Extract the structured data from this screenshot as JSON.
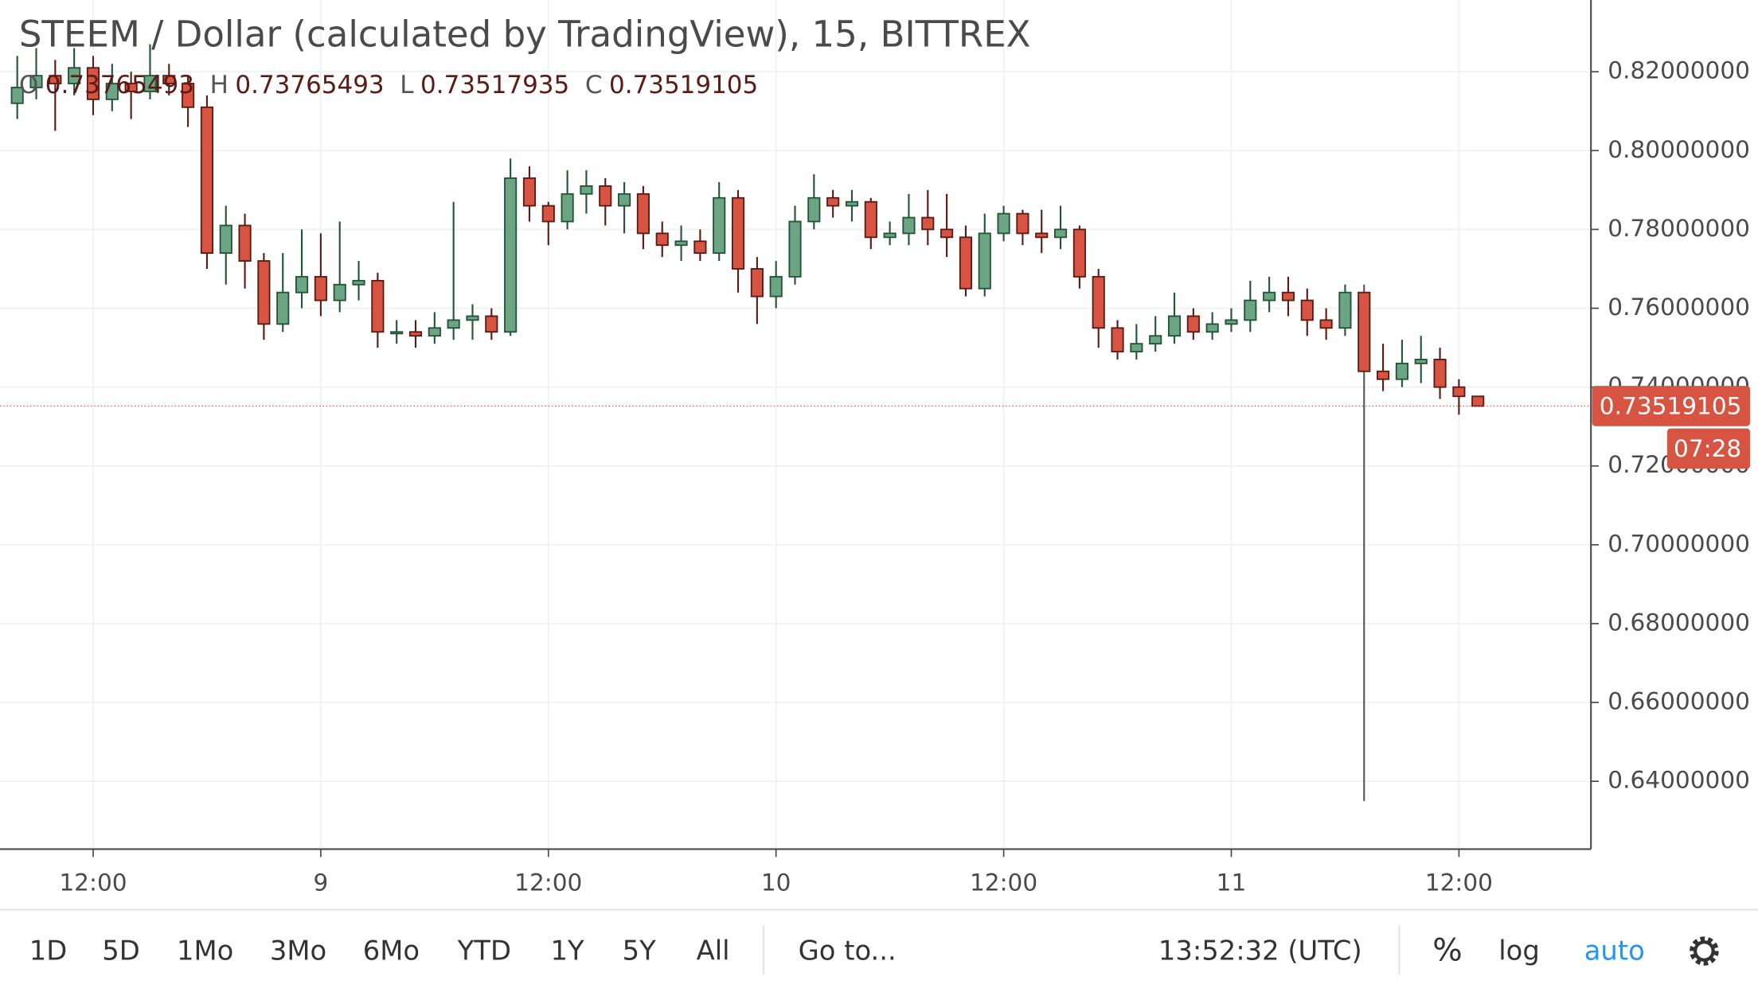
{
  "chart_data": {
    "type": "candlestick",
    "title": "STEEM / Dollar (calculated by TradingView), 15, BITTREX",
    "ohlc_labels": [
      "O",
      "H",
      "L",
      "C"
    ],
    "x": [
      8,
      9,
      10,
      11,
      12,
      13,
      14,
      15,
      16,
      17,
      18,
      19,
      20,
      21,
      22,
      23,
      24,
      25,
      26,
      27,
      28,
      29,
      30,
      31,
      32,
      33,
      34,
      35,
      36,
      37,
      38,
      39,
      40,
      41,
      42,
      43,
      44,
      45,
      46,
      47,
      48,
      49,
      50,
      51,
      52,
      53,
      54,
      55,
      56,
      57,
      58,
      59,
      60,
      61,
      62,
      63,
      64,
      65,
      66,
      67,
      68,
      69,
      70,
      71,
      72,
      73,
      74,
      75,
      76,
      77,
      78,
      79,
      80,
      81,
      82,
      83,
      84,
      85
    ],
    "open": [
      0.812,
      0.816,
      0.819,
      0.817,
      0.821,
      0.813,
      0.817,
      0.815,
      0.819,
      0.817,
      0.811,
      0.774,
      0.781,
      0.772,
      0.756,
      0.764,
      0.768,
      0.762,
      0.766,
      0.767,
      0.754,
      0.754,
      0.753,
      0.755,
      0.757,
      0.758,
      0.754,
      0.793,
      0.786,
      0.782,
      0.789,
      0.791,
      0.786,
      0.789,
      0.779,
      0.776,
      0.777,
      0.774,
      0.788,
      0.77,
      0.763,
      0.768,
      0.782,
      0.788,
      0.786,
      0.787,
      0.778,
      0.779,
      0.783,
      0.78,
      0.778,
      0.765,
      0.779,
      0.784,
      0.779,
      0.778,
      0.78,
      0.768,
      0.755,
      0.749,
      0.751,
      0.753,
      0.758,
      0.754,
      0.756,
      0.757,
      0.762,
      0.764,
      0.762,
      0.757,
      0.755,
      0.764,
      0.744,
      0.742,
      0.746,
      0.747,
      0.74,
      0.73765493
    ],
    "high": [
      0.824,
      0.826,
      0.823,
      0.826,
      0.824,
      0.822,
      0.82,
      0.827,
      0.822,
      0.819,
      0.814,
      0.786,
      0.784,
      0.774,
      0.774,
      0.78,
      0.779,
      0.782,
      0.772,
      0.769,
      0.757,
      0.757,
      0.759,
      0.787,
      0.761,
      0.76,
      0.798,
      0.796,
      0.787,
      0.795,
      0.795,
      0.793,
      0.792,
      0.791,
      0.782,
      0.781,
      0.78,
      0.792,
      0.79,
      0.773,
      0.772,
      0.786,
      0.794,
      0.79,
      0.79,
      0.788,
      0.782,
      0.789,
      0.79,
      0.789,
      0.781,
      0.784,
      0.786,
      0.785,
      0.785,
      0.786,
      0.781,
      0.77,
      0.757,
      0.756,
      0.758,
      0.764,
      0.76,
      0.759,
      0.76,
      0.767,
      0.768,
      0.768,
      0.765,
      0.76,
      0.766,
      0.766,
      0.751,
      0.752,
      0.753,
      0.75,
      0.742,
      0.73765493
    ],
    "low": [
      0.808,
      0.813,
      0.805,
      0.814,
      0.809,
      0.81,
      0.808,
      0.813,
      0.814,
      0.806,
      0.77,
      0.766,
      0.765,
      0.752,
      0.754,
      0.76,
      0.758,
      0.759,
      0.762,
      0.75,
      0.751,
      0.75,
      0.751,
      0.752,
      0.752,
      0.752,
      0.753,
      0.782,
      0.776,
      0.78,
      0.784,
      0.781,
      0.779,
      0.775,
      0.773,
      0.772,
      0.772,
      0.772,
      0.764,
      0.756,
      0.76,
      0.766,
      0.78,
      0.783,
      0.782,
      0.775,
      0.776,
      0.776,
      0.776,
      0.773,
      0.763,
      0.763,
      0.777,
      0.776,
      0.774,
      0.775,
      0.765,
      0.75,
      0.747,
      0.747,
      0.749,
      0.751,
      0.752,
      0.752,
      0.754,
      0.754,
      0.759,
      0.758,
      0.753,
      0.752,
      0.753,
      0.635,
      0.739,
      0.74,
      0.741,
      0.737,
      0.733,
      0.73517935
    ],
    "close": [
      0.816,
      0.819,
      0.817,
      0.821,
      0.813,
      0.817,
      0.815,
      0.819,
      0.817,
      0.811,
      0.774,
      0.781,
      0.772,
      0.756,
      0.764,
      0.768,
      0.762,
      0.766,
      0.767,
      0.754,
      0.754,
      0.753,
      0.755,
      0.757,
      0.758,
      0.754,
      0.793,
      0.786,
      0.782,
      0.789,
      0.791,
      0.786,
      0.789,
      0.779,
      0.776,
      0.777,
      0.774,
      0.788,
      0.77,
      0.763,
      0.768,
      0.782,
      0.788,
      0.786,
      0.787,
      0.778,
      0.779,
      0.783,
      0.78,
      0.778,
      0.765,
      0.779,
      0.784,
      0.779,
      0.778,
      0.78,
      0.768,
      0.755,
      0.749,
      0.751,
      0.753,
      0.758,
      0.754,
      0.756,
      0.757,
      0.762,
      0.764,
      0.762,
      0.757,
      0.755,
      0.764,
      0.744,
      0.742,
      0.746,
      0.747,
      0.74,
      0.73765493,
      0.73519105
    ],
    "up_color": "#6ba583",
    "down_color": "#d75442",
    "xlim": [
      7.09,
      90.9
    ],
    "ylim": [
      0.6228,
      0.8382
    ],
    "xticks": [
      {
        "value": 12,
        "label": "12:00"
      },
      {
        "value": 24,
        "label": "9"
      },
      {
        "value": 36,
        "label": "12:00"
      },
      {
        "value": 48,
        "label": "10"
      },
      {
        "value": 60,
        "label": "12:00"
      },
      {
        "value": 72,
        "label": "11"
      },
      {
        "value": 84,
        "label": "12:00"
      }
    ],
    "yticks": [
      {
        "value": 0.64,
        "label": "0.64000000"
      },
      {
        "value": 0.66,
        "label": "0.66000000"
      },
      {
        "value": 0.68,
        "label": "0.68000000"
      },
      {
        "value": 0.7,
        "label": "0.70000000"
      },
      {
        "value": 0.72,
        "label": "0.72000000"
      },
      {
        "value": 0.74,
        "label": "0.74000000"
      },
      {
        "value": 0.76,
        "label": "0.76000000"
      },
      {
        "value": 0.78,
        "label": "0.78000000"
      },
      {
        "value": 0.8,
        "label": "0.80000000"
      },
      {
        "value": 0.82,
        "label": "0.82000000"
      }
    ],
    "grid": true,
    "countdown": "07:28"
  },
  "toolbar": {
    "ranges": [
      "1D",
      "5D",
      "1Mo",
      "3Mo",
      "6Mo",
      "YTD",
      "1Y",
      "5Y",
      "All"
    ],
    "goto": "Go to...",
    "clock": "13:52:32 (UTC)",
    "percent": "%",
    "log": "log",
    "auto": "auto"
  }
}
